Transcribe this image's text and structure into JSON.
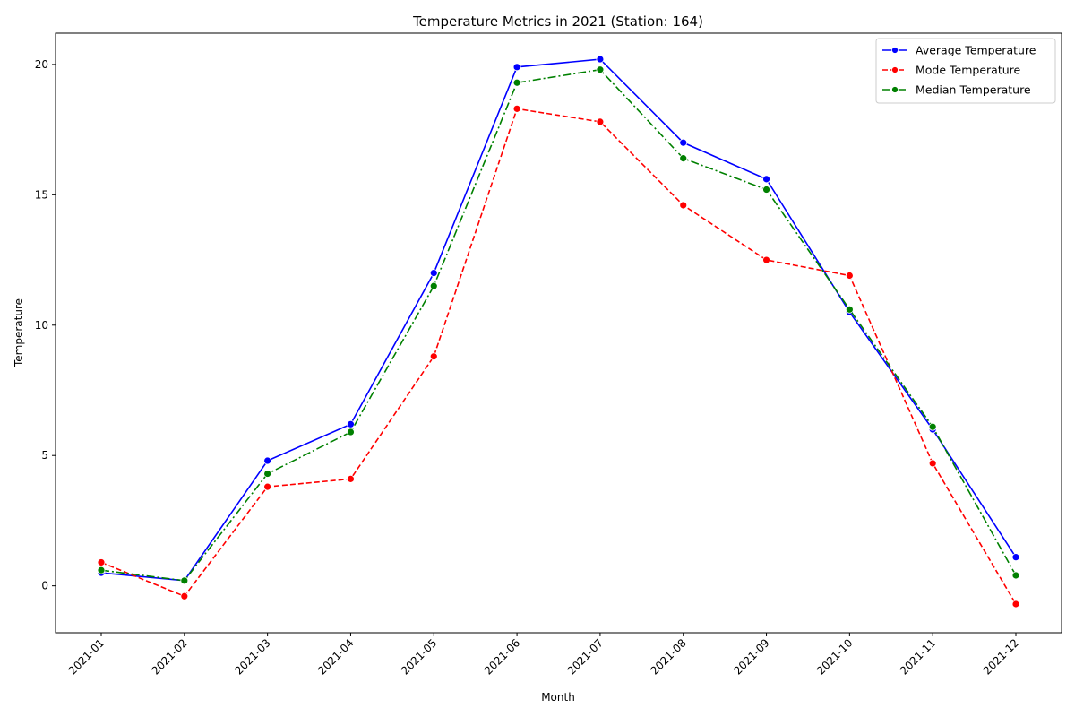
{
  "chart_data": {
    "type": "line",
    "title": "Temperature Metrics in 2021 (Station: 164)",
    "xlabel": "Month",
    "ylabel": "Temperature",
    "categories": [
      "2021-01",
      "2021-02",
      "2021-03",
      "2021-04",
      "2021-05",
      "2021-06",
      "2021-07",
      "2021-08",
      "2021-09",
      "2021-10",
      "2021-11",
      "2021-12"
    ],
    "ylim": [
      -1.8,
      21.2
    ],
    "yticks": [
      0,
      5,
      10,
      15,
      20
    ],
    "grid": false,
    "legend_position": "top-right",
    "series": [
      {
        "name": "Average Temperature",
        "color": "#0000ff",
        "dash": "solid",
        "values": [
          0.5,
          0.2,
          4.8,
          6.2,
          12.0,
          19.9,
          20.2,
          17.0,
          15.6,
          10.5,
          6.0,
          1.1
        ]
      },
      {
        "name": "Mode Temperature",
        "color": "#ff0000",
        "dash": "dashed",
        "values": [
          0.9,
          -0.4,
          3.8,
          4.1,
          8.8,
          18.3,
          17.8,
          14.6,
          12.5,
          11.9,
          4.7,
          -0.7
        ]
      },
      {
        "name": "Median Temperature",
        "color": "#008000",
        "dash": "dashdot",
        "values": [
          0.6,
          0.2,
          4.3,
          5.9,
          11.5,
          19.3,
          19.8,
          16.4,
          15.2,
          10.6,
          6.1,
          0.4
        ]
      }
    ]
  }
}
